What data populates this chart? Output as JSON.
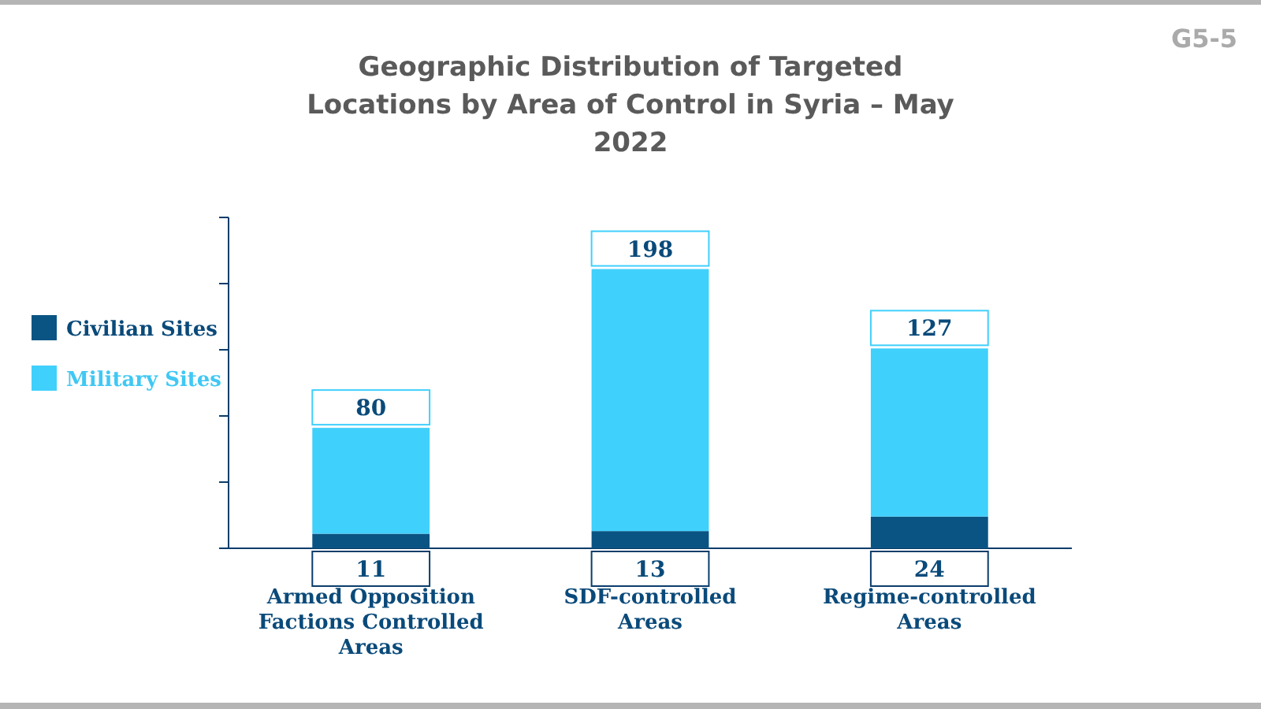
{
  "chart_data": {
    "type": "bar",
    "stacked": true,
    "title": "Geographic Distribution of Targeted Locations by Area of Control in Syria – May 2022",
    "annotations": [
      "G5-5"
    ],
    "categories": [
      "Armed Opposition Factions Controlled Areas",
      "SDF-controlled Areas",
      "Regime-controlled Areas"
    ],
    "series": [
      {
        "name": "Civilian Sites",
        "color": "#0a5483",
        "values": [
          11,
          13,
          24
        ]
      },
      {
        "name": "Military Sites",
        "color": "#40d0fc",
        "values": [
          80,
          198,
          127
        ]
      }
    ],
    "ylim": [
      0,
      250
    ],
    "yticks": [
      {
        "value": 0,
        "label": null
      },
      {
        "value": 50,
        "label": null
      },
      {
        "value": 100,
        "label": null
      },
      {
        "value": 150,
        "label": null
      },
      {
        "value": 200,
        "label": null
      },
      {
        "value": 250,
        "label": null
      }
    ],
    "tick_labels": "x",
    "data_labels": true,
    "legend": "left",
    "grid": false
  }
}
